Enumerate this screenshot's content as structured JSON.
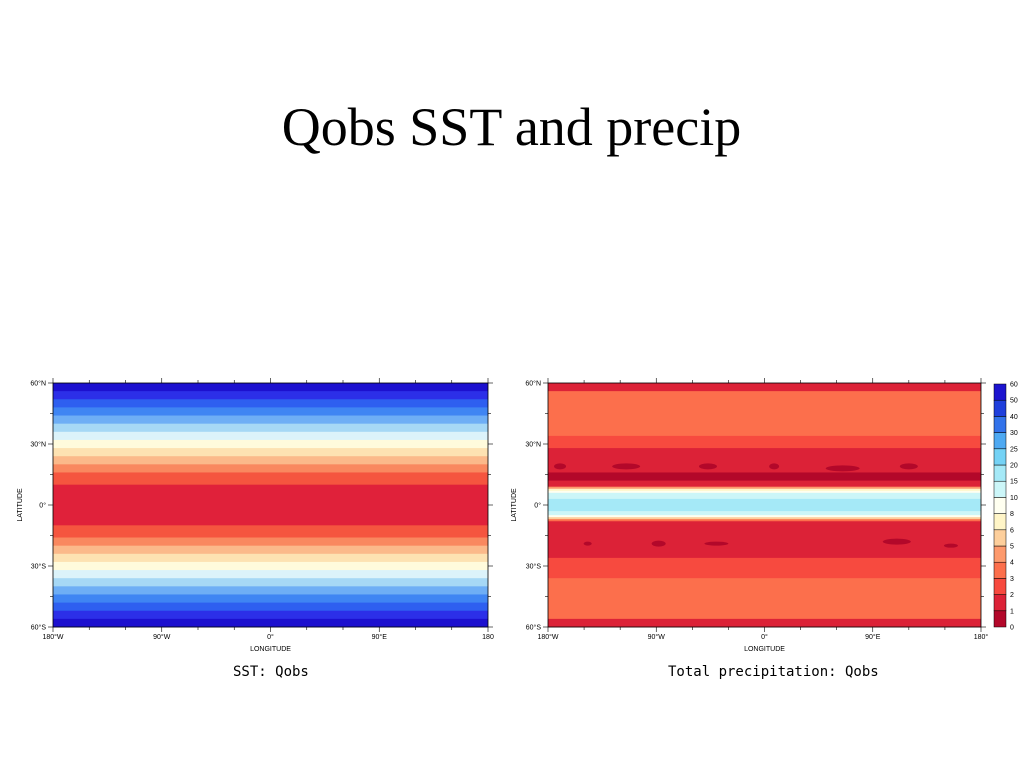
{
  "slide": {
    "title": "Qobs SST and precip"
  },
  "colors": {
    "sst_bands": [
      "#1c10cf",
      "#2c2fe8",
      "#2e5ff0",
      "#3f85f3",
      "#6eaef5",
      "#a6d8f5",
      "#dcf3fa",
      "#fffbdc",
      "#fde2b2",
      "#fbb98a",
      "#f9885f",
      "#f5553f",
      "#e0213a",
      "#c8102e"
    ],
    "precip_levels": [
      "#b3082a",
      "#dc2237",
      "#f74a3f",
      "#fc6f4c",
      "#fd9a6d",
      "#fdcf9c",
      "#fff5c7",
      "#fffff0",
      "#ccf6f8",
      "#a5e9f7",
      "#74d2f5",
      "#4ea9f2",
      "#3373ea",
      "#1f3fdc",
      "#1c14cf"
    ]
  },
  "chart_data": [
    {
      "type": "heatmap",
      "caption": "SST: Qobs",
      "xlabel": "LONGITUDE",
      "ylabel": "LATITUDE",
      "xlim": [
        -180,
        180
      ],
      "ylim": [
        -60,
        60
      ],
      "xticks": [
        "180°W",
        "90°W",
        "0°",
        "90°E",
        "180"
      ],
      "yticks": [
        "60°N",
        "30°N",
        "0°",
        "30°S",
        "60°S"
      ],
      "note": "zonally uniform field; warmest 10°S–10°N, cooling poleward",
      "lat_bands": [
        {
          "from": 60,
          "to": 56,
          "level": 0
        },
        {
          "from": 56,
          "to": 52,
          "level": 1
        },
        {
          "from": 52,
          "to": 48,
          "level": 2
        },
        {
          "from": 48,
          "to": 44,
          "level": 3
        },
        {
          "from": 44,
          "to": 40,
          "level": 4
        },
        {
          "from": 40,
          "to": 36,
          "level": 5
        },
        {
          "from": 36,
          "to": 32,
          "level": 6
        },
        {
          "from": 32,
          "to": 28,
          "level": 7
        },
        {
          "from": 28,
          "to": 24,
          "level": 8
        },
        {
          "from": 24,
          "to": 20,
          "level": 9
        },
        {
          "from": 20,
          "to": 16,
          "level": 10
        },
        {
          "from": 16,
          "to": 10,
          "level": 11
        },
        {
          "from": 10,
          "to": -10,
          "level": 12
        },
        {
          "from": -10,
          "to": -16,
          "level": 11
        },
        {
          "from": -16,
          "to": -20,
          "level": 10
        },
        {
          "from": -20,
          "to": -24,
          "level": 9
        },
        {
          "from": -24,
          "to": -28,
          "level": 8
        },
        {
          "from": -28,
          "to": -32,
          "level": 7
        },
        {
          "from": -32,
          "to": -36,
          "level": 6
        },
        {
          "from": -36,
          "to": -40,
          "level": 5
        },
        {
          "from": -40,
          "to": -44,
          "level": 4
        },
        {
          "from": -44,
          "to": -48,
          "level": 3
        },
        {
          "from": -48,
          "to": -52,
          "level": 2
        },
        {
          "from": -52,
          "to": -56,
          "level": 1
        },
        {
          "from": -56,
          "to": -60,
          "level": 0
        }
      ]
    },
    {
      "type": "heatmap",
      "caption": "Total precipitation: Qobs",
      "xlabel": "LONGITUDE",
      "ylabel": "LATITUDE",
      "xlim": [
        -180,
        180
      ],
      "ylim": [
        -60,
        60
      ],
      "xticks": [
        "180°W",
        "90°W",
        "0°",
        "90°E",
        "180°"
      ],
      "yticks": [
        "60°N",
        "30°N",
        "0°",
        "30°S",
        "60°S"
      ],
      "colorbar_labels": [
        "0",
        "1",
        "2",
        "3",
        "4",
        "5",
        "6",
        "8",
        "10",
        "15",
        "20",
        "25",
        "30",
        "40",
        "50",
        "60"
      ],
      "lat_bands": [
        {
          "from": 60,
          "to": 56,
          "level": 1
        },
        {
          "from": 56,
          "to": 34,
          "level": 3
        },
        {
          "from": 34,
          "to": 28,
          "level": 2
        },
        {
          "from": 28,
          "to": 16,
          "level": 1
        },
        {
          "from": 16,
          "to": 12,
          "level": 0
        },
        {
          "from": 12,
          "to": 9,
          "level": 1
        },
        {
          "from": 9,
          "to": 8,
          "level": 4
        },
        {
          "from": 8,
          "to": 7,
          "level": 6
        },
        {
          "from": 7,
          "to": 6,
          "level": 7
        },
        {
          "from": 6,
          "to": 3,
          "level": 8
        },
        {
          "from": 3,
          "to": -3,
          "level": 9
        },
        {
          "from": -3,
          "to": -5,
          "level": 8
        },
        {
          "from": -5,
          "to": -6,
          "level": 7
        },
        {
          "from": -6,
          "to": -7,
          "level": 5
        },
        {
          "from": -7,
          "to": -8,
          "level": 3
        },
        {
          "from": -8,
          "to": -10,
          "level": 1
        },
        {
          "from": -10,
          "to": -26,
          "level": 1
        },
        {
          "from": -26,
          "to": -36,
          "level": 2
        },
        {
          "from": -36,
          "to": -56,
          "level": 3
        },
        {
          "from": -56,
          "to": -60,
          "level": 1
        }
      ],
      "spots": [
        {
          "lon": -170,
          "lat": 19,
          "rx": 6,
          "ry": 3
        },
        {
          "lon": -115,
          "lat": 19,
          "rx": 14,
          "ry": 3
        },
        {
          "lon": -47,
          "lat": 19,
          "rx": 9,
          "ry": 3
        },
        {
          "lon": 8,
          "lat": 19,
          "rx": 5,
          "ry": 3
        },
        {
          "lon": 65,
          "lat": 18,
          "rx": 17,
          "ry": 3
        },
        {
          "lon": 120,
          "lat": 19,
          "rx": 9,
          "ry": 3
        },
        {
          "lon": -147,
          "lat": -19,
          "rx": 4,
          "ry": 2
        },
        {
          "lon": -88,
          "lat": -19,
          "rx": 7,
          "ry": 3
        },
        {
          "lon": -40,
          "lat": -19,
          "rx": 12,
          "ry": 2
        },
        {
          "lon": 110,
          "lat": -18,
          "rx": 14,
          "ry": 3
        },
        {
          "lon": 155,
          "lat": -20,
          "rx": 7,
          "ry": 2
        }
      ]
    }
  ]
}
